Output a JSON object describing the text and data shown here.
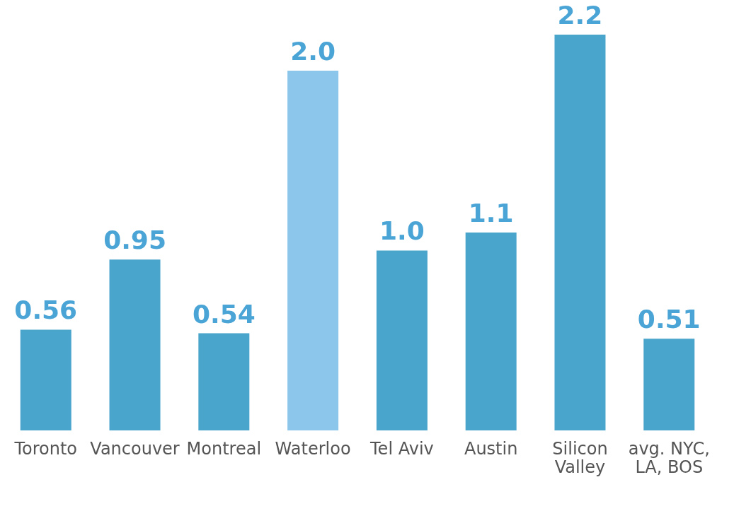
{
  "chart_data": {
    "type": "bar",
    "categories": [
      "Toronto",
      "Vancouver",
      "Montreal",
      "Waterloo",
      "Tel Aviv",
      "Austin",
      "Silicon Valley",
      "avg. NYC, LA, BOS"
    ],
    "values": [
      0.56,
      0.95,
      0.54,
      2.0,
      1.0,
      1.1,
      2.2,
      0.51
    ],
    "value_labels": [
      "0.56",
      "0.95",
      "0.54",
      "2.0",
      "1.0",
      "1.1",
      "2.2",
      "0.51"
    ],
    "colors": [
      "#4aa5cc",
      "#4aa5cc",
      "#4aa5cc",
      "#8cc6ea",
      "#4aa5cc",
      "#4aa5cc",
      "#4aa5cc",
      "#4aa5cc"
    ]
  }
}
